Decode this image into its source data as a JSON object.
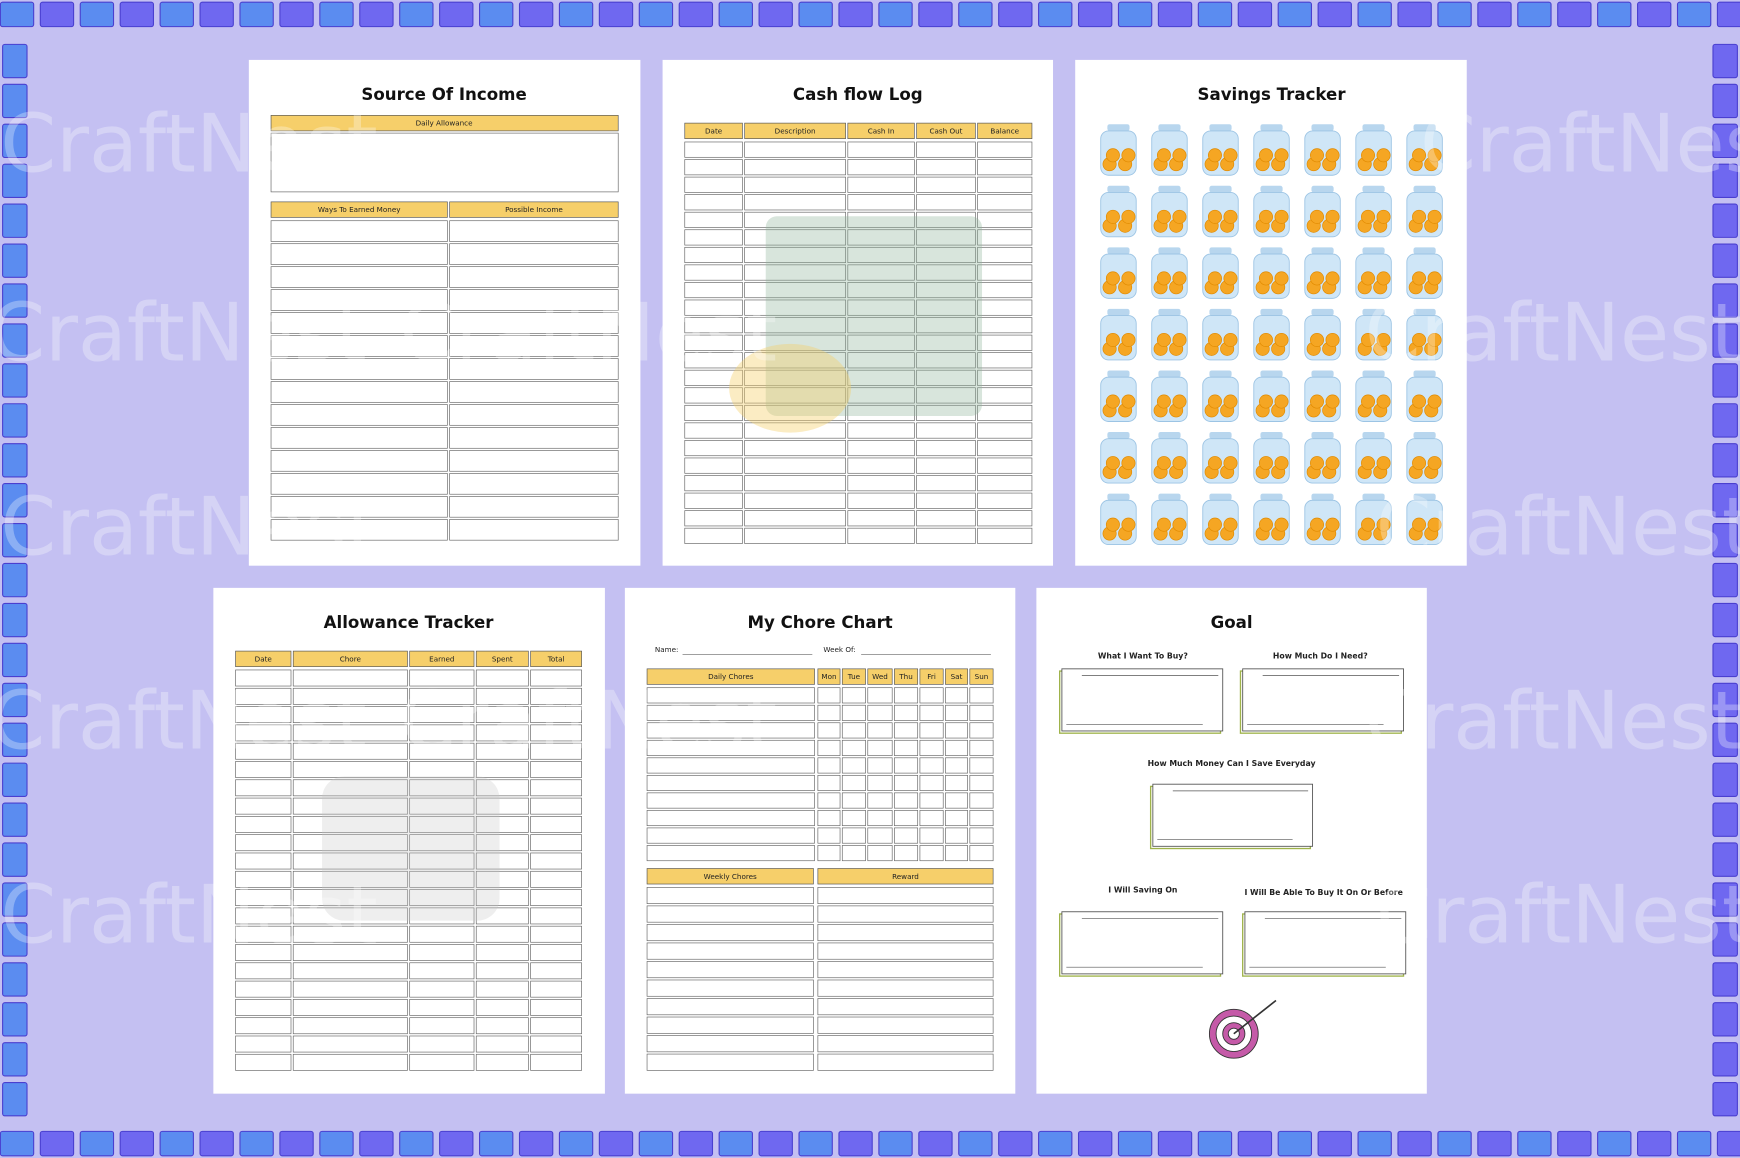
{
  "watermark": "CraftNest",
  "source_of_income": {
    "title": "Source Of Income",
    "box_header": "Daily Allowance",
    "table_headers": [
      "Ways To Earned Money",
      "Possible Income"
    ]
  },
  "cash_flow_log": {
    "title": "Cash flow Log",
    "table_headers": [
      "Date",
      "Description",
      "Cash In",
      "Cash Out",
      "Balance"
    ]
  },
  "savings_tracker": {
    "title": "Savings Tracker"
  },
  "allowance_tracker": {
    "title": "Allowance Tracker",
    "table_headers": [
      "Date",
      "Chore",
      "Earned",
      "Spent",
      "Total"
    ]
  },
  "chore_chart": {
    "title": "My Chore Chart",
    "name_label": "Name:",
    "week_label": "Week Of:",
    "daily_headers": [
      "Daily Chores",
      "Mon",
      "Tue",
      "Wed",
      "Thu",
      "Fri",
      "Sat",
      "Sun"
    ],
    "weekly_headers": [
      "Weekly Chores",
      "Reward"
    ]
  },
  "goal": {
    "title": "Goal",
    "labels": [
      "What I Want To Buy?",
      "How Much Do I Need?",
      "How Much Money Can I  Save Everyday",
      "I Will Saving On",
      "I Will Be Able To Buy It On Or Before"
    ]
  }
}
